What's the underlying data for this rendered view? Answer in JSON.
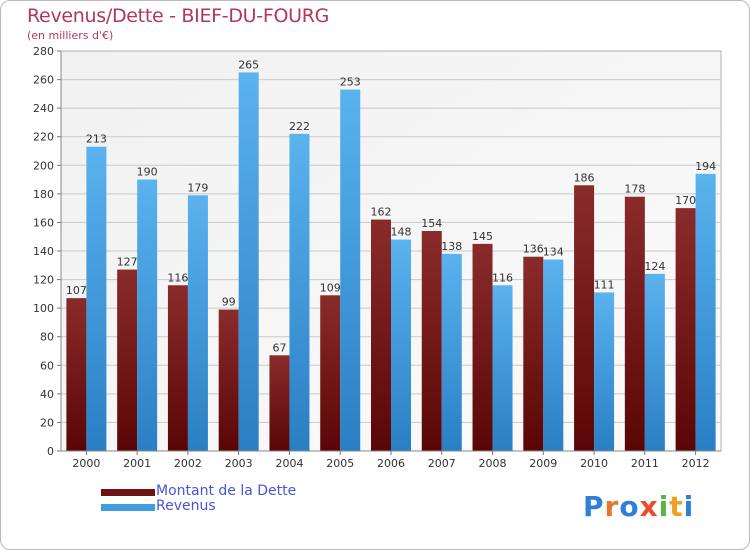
{
  "chart_data": {
    "type": "bar",
    "title": "Revenus/Dette - BIEF-DU-FOURG",
    "subtitle": "(en milliers d'€)",
    "categories": [
      "2000",
      "2001",
      "2002",
      "2003",
      "2004",
      "2005",
      "2006",
      "2007",
      "2008",
      "2009",
      "2010",
      "2011",
      "2012"
    ],
    "series": [
      {
        "name": "Montant de la Dette",
        "color": "#7a1c1c",
        "values": [
          107,
          127,
          116,
          99,
          67,
          109,
          162,
          154,
          145,
          136,
          186,
          178,
          170
        ]
      },
      {
        "name": "Revenus",
        "color": "#3f9de0",
        "values": [
          213,
          190,
          179,
          265,
          222,
          253,
          148,
          138,
          116,
          134,
          111,
          124,
          194
        ]
      }
    ],
    "ylim": [
      0,
      280
    ],
    "yticks": [
      0,
      20,
      40,
      60,
      80,
      100,
      120,
      140,
      160,
      180,
      200,
      220,
      240,
      260,
      280
    ],
    "grid": true,
    "legend_position": "bottom-left"
  },
  "logo": {
    "letters": [
      {
        "ch": "P",
        "color": "#2f7fd8"
      },
      {
        "ch": "r",
        "color": "#e8742c"
      },
      {
        "ch": "o",
        "color": "#2f7fd8"
      },
      {
        "ch": "x",
        "color": "#e84d2c"
      },
      {
        "ch": "i",
        "color": "#5cb53b"
      },
      {
        "ch": "t",
        "color": "#f0a020"
      },
      {
        "ch": "i",
        "color": "#2f7fd8"
      }
    ]
  }
}
